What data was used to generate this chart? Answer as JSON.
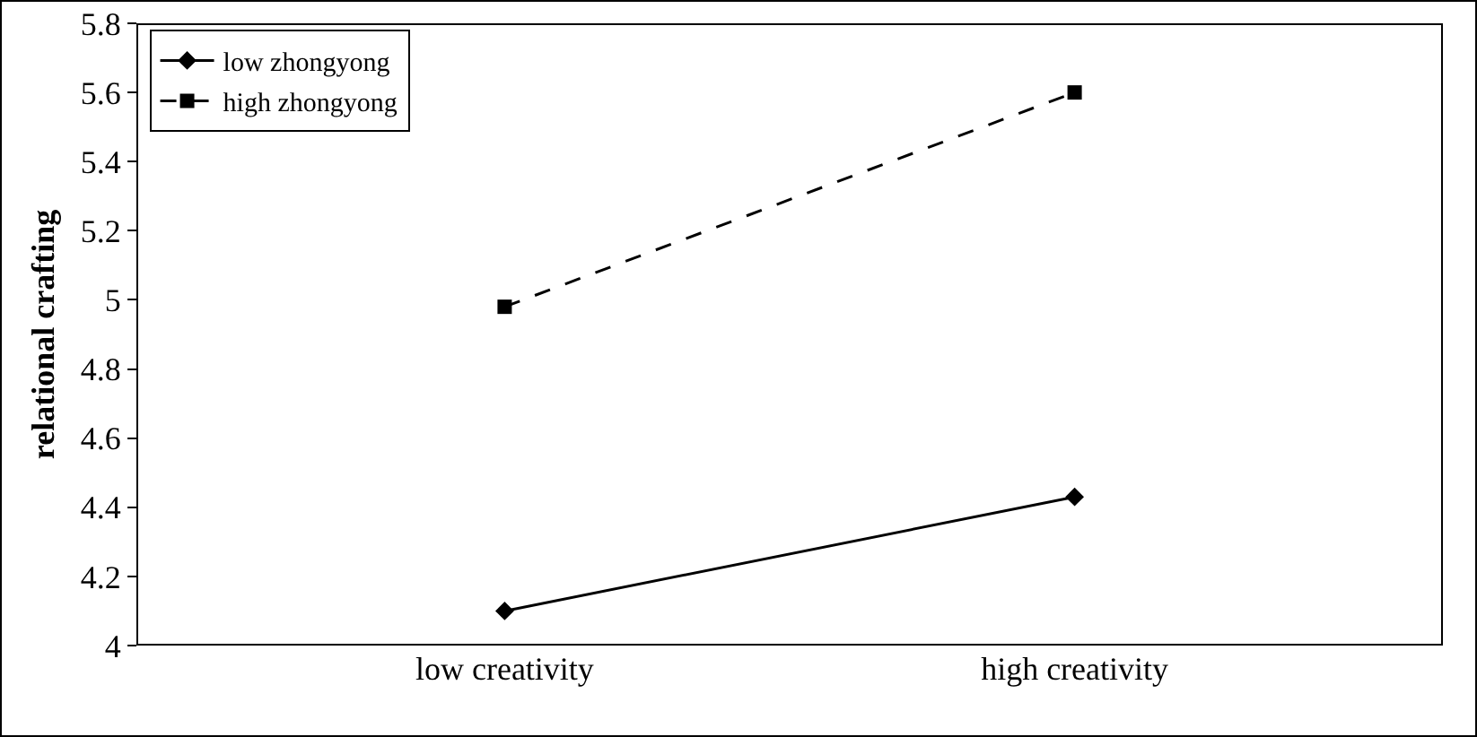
{
  "chart_data": {
    "type": "line",
    "ylabel": "relational crafting",
    "categories": [
      "low creativity",
      "high creativity"
    ],
    "series": [
      {
        "name": "low zhongyong",
        "color": "#000000",
        "values": [
          4.1,
          4.43
        ],
        "marker": "diamond",
        "line_style": "solid"
      },
      {
        "name": "high zhongyong",
        "color": "#000000",
        "values": [
          4.98,
          5.6
        ],
        "marker": "square",
        "line_style": "dashed"
      }
    ],
    "ylim": [
      4,
      5.8
    ],
    "yticks": [
      4,
      4.2,
      4.4,
      4.6,
      4.8,
      5,
      5.2,
      5.4,
      5.6,
      5.8
    ],
    "grid": false,
    "legend": "top left"
  }
}
